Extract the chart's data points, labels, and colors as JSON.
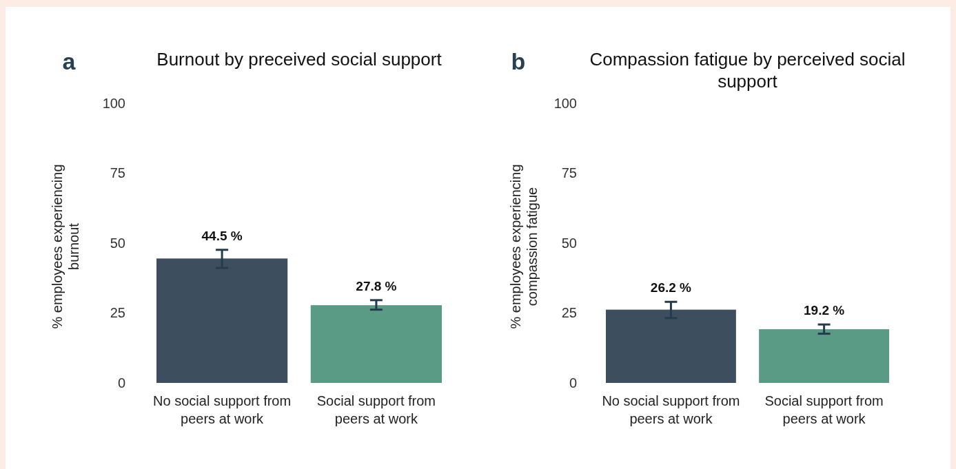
{
  "chart_data": [
    {
      "type": "bar",
      "title": "Burnout by preceived social support",
      "ylabel": "% employees experiencing burnout",
      "annotations": [
        "a"
      ],
      "categories": [
        "No social support from peers at work",
        "Social support from peers at work"
      ],
      "values": [
        44.5,
        27.8
      ],
      "colors": [
        "#3d4f5f",
        "#5a9b85"
      ],
      "errors": [
        [
          41.1,
          47.6
        ],
        [
          26.2,
          29.6
        ]
      ],
      "value_labels": [
        "44.5 %",
        "27.8 %"
      ],
      "ylim": [
        0,
        100
      ],
      "yticks": [
        0,
        25,
        50,
        75,
        100
      ],
      "grid": false
    },
    {
      "type": "bar",
      "title": "Compassion fatigue by perceived social support",
      "ylabel": "% employees experiencing compassion fatigue",
      "annotations": [
        "b"
      ],
      "categories": [
        "No social support from peers at work",
        "Social support from peers at work"
      ],
      "values": [
        26.2,
        19.2
      ],
      "colors": [
        "#3d4f5f",
        "#5a9b85"
      ],
      "errors": [
        [
          23.2,
          29.0
        ],
        [
          17.6,
          20.9
        ]
      ],
      "value_labels": [
        "26.2 %",
        "19.2 %"
      ],
      "ylim": [
        0,
        100
      ],
      "yticks": [
        0,
        25,
        50,
        75,
        100
      ],
      "grid": false
    }
  ]
}
